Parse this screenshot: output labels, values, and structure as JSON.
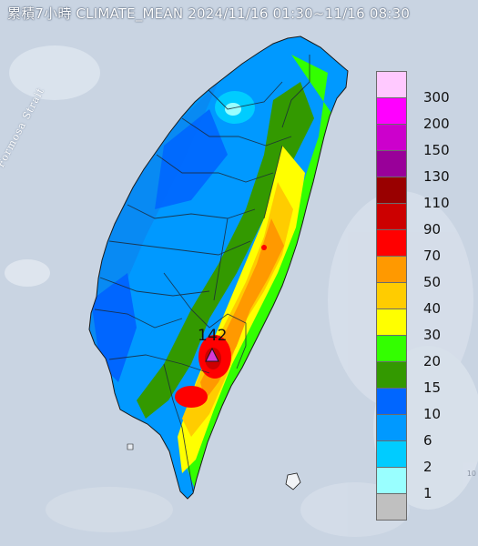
{
  "title": "累積7小時 CLIMATE_MEAN 2024/11/16 01:30~11/16 08:30",
  "strait_label": "Formosa Strait",
  "peak": {
    "value": "142",
    "color": "#d63ad6"
  },
  "legend": [
    {
      "label": "300",
      "color": "#ffc9ff"
    },
    {
      "label": "200",
      "color": "#ff00ff"
    },
    {
      "label": "150",
      "color": "#cc00cc"
    },
    {
      "label": "130",
      "color": "#990099"
    },
    {
      "label": "110",
      "color": "#990000"
    },
    {
      "label": "90",
      "color": "#cc0000"
    },
    {
      "label": "70",
      "color": "#ff0000"
    },
    {
      "label": "50",
      "color": "#ff9900"
    },
    {
      "label": "40",
      "color": "#ffcc00"
    },
    {
      "label": "30",
      "color": "#ffff00"
    },
    {
      "label": "20",
      "color": "#33ff00"
    },
    {
      "label": "15",
      "color": "#339900"
    },
    {
      "label": "10",
      "color": "#0066ff"
    },
    {
      "label": "6",
      "color": "#0099ff"
    },
    {
      "label": "2",
      "color": "#00ccff"
    },
    {
      "label": "1",
      "color": "#99ffff"
    },
    {
      "label": "",
      "color": "#c0c0c0"
    }
  ],
  "colors": {
    "sea": "#c9d4e2",
    "cloud": "#e8eef6",
    "rain_10": "#0066ff",
    "rain_6": "#0099ff",
    "rain_2": "#00ccff",
    "rain_15": "#339900",
    "rain_20": "#33ff00",
    "rain_30": "#ffff00",
    "rain_40": "#ffcc00",
    "rain_50": "#ff9900",
    "rain_70": "#ff0000",
    "rain_90": "#cc0000"
  }
}
